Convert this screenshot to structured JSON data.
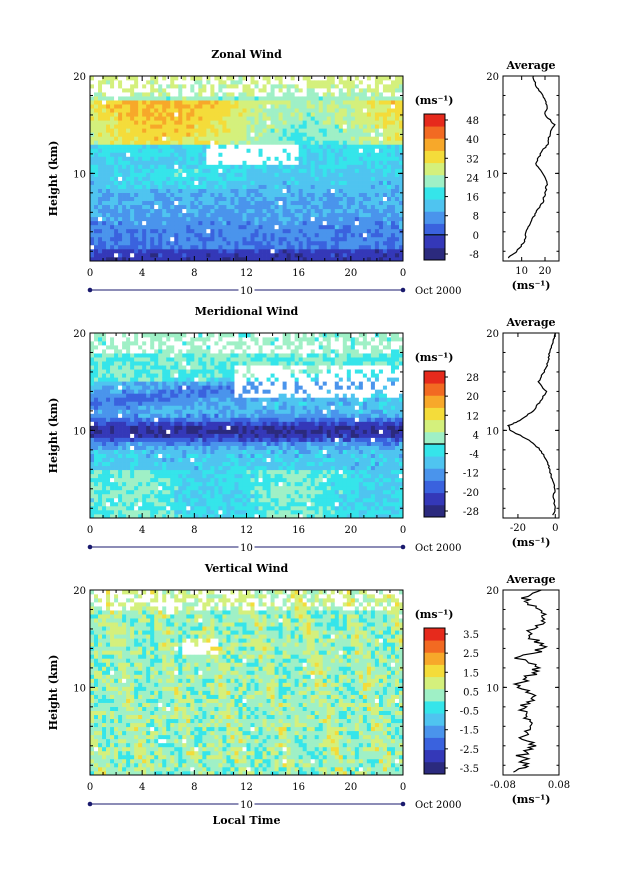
{
  "chart_data": [
    {
      "type": "heatmap",
      "title": "Zonal Wind",
      "ylabel": "Height (km)",
      "unit_label": "(ms⁻¹)",
      "x_ticks": [
        "0",
        "4",
        "8",
        "12",
        "16",
        "20",
        "0"
      ],
      "xlim": [
        0,
        24
      ],
      "y_ticks": [
        "20",
        "10"
      ],
      "ylim": [
        1,
        20
      ],
      "date_marker": "10",
      "date_right": "Oct 2000",
      "colorbar_ticks": [
        "48",
        "40",
        "32",
        "24",
        "16",
        "8",
        "0",
        "-8"
      ],
      "colorbar_range": [
        -8,
        48
      ],
      "profile": {
        "title": "Average",
        "x_ticks": [
          "10",
          "20"
        ],
        "xlim": [
          2,
          26
        ],
        "y_ticks": [
          "20",
          "10"
        ],
        "xunit": "(ms⁻¹)",
        "height": [
          1.3,
          2,
          3,
          4,
          5,
          6,
          7,
          8,
          9,
          10,
          11,
          12,
          13,
          14,
          15,
          16,
          17,
          18,
          19,
          20
        ],
        "value": [
          4,
          8,
          11,
          12,
          14,
          16,
          19,
          20,
          21,
          19,
          16,
          18,
          21,
          22,
          24,
          20,
          21,
          19,
          16,
          15
        ]
      }
    },
    {
      "type": "heatmap",
      "title": "Meridional Wind",
      "ylabel": "Height (km)",
      "unit_label": "(ms⁻¹)",
      "x_ticks": [
        "0",
        "4",
        "8",
        "12",
        "16",
        "20",
        "0"
      ],
      "xlim": [
        0,
        24
      ],
      "y_ticks": [
        "20",
        "10"
      ],
      "ylim": [
        1,
        20
      ],
      "date_marker": "10",
      "date_right": "Oct 2000",
      "colorbar_ticks": [
        "28",
        "20",
        "12",
        "4",
        "-4",
        "-12",
        "-20",
        "-28"
      ],
      "colorbar_range": [
        -28,
        28
      ],
      "profile": {
        "title": "Average",
        "x_ticks": [
          "-20",
          "0"
        ],
        "xlim": [
          -28,
          2
        ],
        "y_ticks": [
          "20",
          "10"
        ],
        "xunit": "(ms⁻¹)",
        "height": [
          1.3,
          2,
          3,
          4,
          5,
          6,
          7,
          8,
          9,
          10,
          10.5,
          11,
          12,
          13,
          14,
          15,
          16,
          17,
          18,
          19,
          20
        ],
        "value": [
          -1,
          0,
          -1,
          0,
          -2,
          -3,
          -5,
          -8,
          -14,
          -24,
          -25,
          -19,
          -12,
          -8,
          -5,
          -9,
          -6,
          -4,
          -3,
          -1,
          0
        ]
      }
    },
    {
      "type": "heatmap",
      "title": "Vertical Wind",
      "ylabel": "Height (km)",
      "xlabel": "Local Time",
      "unit_label": "(ms⁻¹)",
      "x_ticks": [
        "0",
        "4",
        "8",
        "12",
        "16",
        "20",
        "0"
      ],
      "xlim": [
        0,
        24
      ],
      "y_ticks": [
        "20",
        "10"
      ],
      "ylim": [
        1,
        20
      ],
      "date_marker": "10",
      "date_right": "Oct 2000",
      "colorbar_ticks": [
        "3.5",
        "2.5",
        "1.5",
        "0.5",
        "-0.5",
        "-1.5",
        "-2.5",
        "-3.5"
      ],
      "colorbar_range": [
        -4,
        4
      ],
      "profile": {
        "title": "Average",
        "x_ticks": [
          "-0.08",
          "0.08"
        ],
        "xlim": [
          -0.08,
          0.08
        ],
        "y_ticks": [
          "20",
          "10"
        ],
        "xunit": "(ms⁻¹)",
        "height": [
          1.3,
          2,
          3,
          4,
          5,
          6,
          7,
          8,
          9,
          10,
          11,
          12,
          13,
          14,
          15,
          16,
          17,
          18,
          19,
          20
        ],
        "value": [
          -0.05,
          -0.01,
          -0.03,
          0.0,
          -0.02,
          0.01,
          -0.01,
          -0.03,
          0.02,
          -0.04,
          -0.01,
          0.02,
          -0.03,
          0.04,
          0.01,
          0.0,
          0.05,
          0.02,
          -0.02,
          0.03
        ]
      }
    }
  ]
}
